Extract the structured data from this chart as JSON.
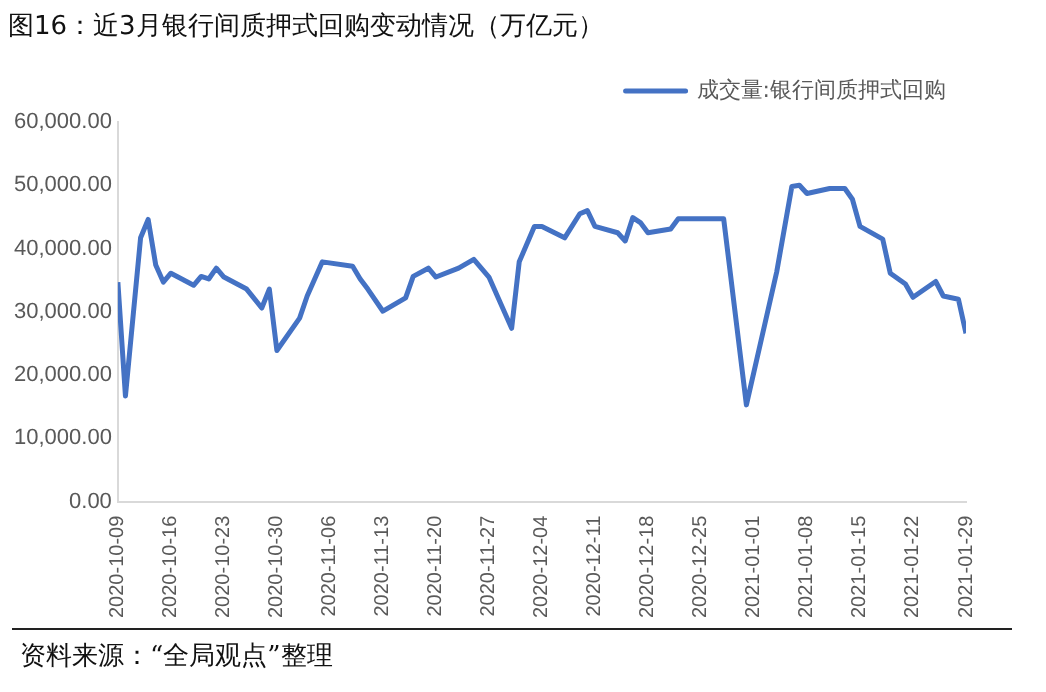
{
  "chart_data": {
    "type": "line",
    "title": "图16：近3月银行间质押式回购变动情况（万亿元）",
    "annotations": [
      "资料来源：“全局观点”整理"
    ],
    "x": [
      "2020-10-09",
      "2020-10-10",
      "2020-10-12",
      "2020-10-13",
      "2020-10-14",
      "2020-10-15",
      "2020-10-16",
      "2020-10-19",
      "2020-10-20",
      "2020-10-21",
      "2020-10-22",
      "2020-10-23",
      "2020-10-26",
      "2020-10-28",
      "2020-10-29",
      "2020-10-30",
      "2020-11-02",
      "2020-11-03",
      "2020-11-05",
      "2020-11-09",
      "2020-11-10",
      "2020-11-11",
      "2020-11-13",
      "2020-11-16",
      "2020-11-17",
      "2020-11-19",
      "2020-11-20",
      "2020-11-23",
      "2020-11-25",
      "2020-11-27",
      "2020-11-30",
      "2020-12-01",
      "2020-12-03",
      "2020-12-04",
      "2020-12-07",
      "2020-12-09",
      "2020-12-10",
      "2020-12-11",
      "2020-12-14",
      "2020-12-15",
      "2020-12-16",
      "2020-12-17",
      "2020-12-18",
      "2020-12-21",
      "2020-12-22",
      "2020-12-24",
      "2020-12-28",
      "2020-12-31",
      "2021-01-04",
      "2021-01-06",
      "2021-01-07",
      "2021-01-08",
      "2021-01-11",
      "2021-01-13",
      "2021-01-14",
      "2021-01-15",
      "2021-01-18",
      "2021-01-19",
      "2021-01-21",
      "2021-01-22",
      "2021-01-25",
      "2021-01-26",
      "2021-01-28",
      "2021-01-29"
    ],
    "series": [
      {
        "name": "成交量:银行间质押式回购",
        "color": "#4472c4",
        "values": [
          34700,
          16700,
          41700,
          44600,
          37400,
          34700,
          36100,
          34200,
          35600,
          35200,
          36900,
          35500,
          33600,
          30600,
          33600,
          23900,
          29000,
          32500,
          37900,
          37200,
          35200,
          33600,
          30100,
          32200,
          35600,
          36900,
          35500,
          36900,
          38300,
          35500,
          27400,
          37900,
          43500,
          43500,
          41700,
          45500,
          46000,
          43500,
          42500,
          41200,
          44900,
          44100,
          42500,
          43100,
          44700,
          44700,
          44700,
          15300,
          36300,
          49800,
          50000,
          48700,
          49500,
          49500,
          47800,
          43500,
          41500,
          36100,
          34400,
          32300,
          34800,
          32500,
          32000,
          26600
        ]
      }
    ],
    "xlim": [
      "2020-10-09",
      "2021-01-29"
    ],
    "xticks": [
      "2020-10-09",
      "2020-10-16",
      "2020-10-23",
      "2020-10-30",
      "2020-11-06",
      "2020-11-13",
      "2020-11-20",
      "2020-11-27",
      "2020-12-04",
      "2020-12-11",
      "2020-12-18",
      "2020-12-25",
      "2021-01-01",
      "2021-01-08",
      "2021-01-15",
      "2021-01-22",
      "2021-01-29"
    ],
    "ylim": [
      0,
      60000
    ],
    "yticks": [
      {
        "value": 0,
        "label": "0.00"
      },
      {
        "value": 10000,
        "label": "10,000.00"
      },
      {
        "value": 20000,
        "label": "20,000.00"
      },
      {
        "value": 30000,
        "label": "30,000.00"
      },
      {
        "value": 40000,
        "label": "40,000.00"
      },
      {
        "value": 50000,
        "label": "50,000.00"
      },
      {
        "value": 60000,
        "label": "60,000.00"
      }
    ],
    "grid": false,
    "legend": "top right",
    "marker": "none",
    "line_style": "solid"
  }
}
